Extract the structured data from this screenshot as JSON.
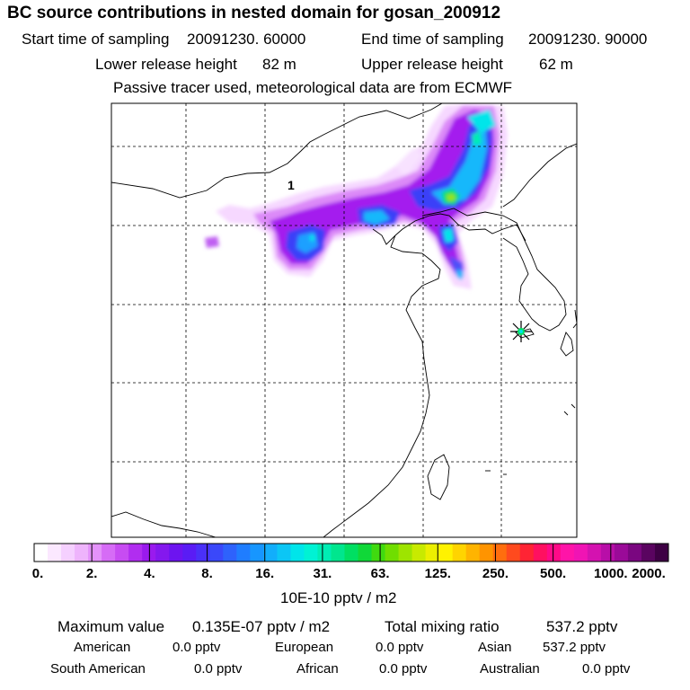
{
  "title": "BC  source contributions in nested domain for gosan_200912",
  "sampling": {
    "start_label": "Start time of sampling",
    "start_value": "20091230. 60000",
    "end_label": "End time of sampling",
    "end_value": "20091230. 90000"
  },
  "release": {
    "lower_label": "Lower release height",
    "lower_value": "82 m",
    "upper_label": "Upper release height",
    "upper_value": "62 m"
  },
  "note": "Passive tracer used, meteorological data are from ECMWF",
  "map": {
    "marker_label": "1",
    "receptor_name": "gosan"
  },
  "colorbar": {
    "unit": "10E-10 pptv / m2",
    "tick_labels": [
      "0.",
      "2.",
      "4.",
      "8.",
      "16.",
      "31.",
      "63.",
      "125.",
      "250.",
      "500.",
      "1000.",
      "2000."
    ],
    "colors": [
      "#ffffff",
      "#fbe8ff",
      "#f5d0ff",
      "#eeb4fc",
      "#e492fa",
      "#d66cf6",
      "#c74cf2",
      "#b12df0",
      "#9a1aee",
      "#8418ee",
      "#6d14f0",
      "#5a1cf5",
      "#4a30f8",
      "#3a48fa",
      "#2e62fc",
      "#1f7dff",
      "#1796ff",
      "#12aefb",
      "#0cc6f5",
      "#00e5ea",
      "#00f2d4",
      "#00edb4",
      "#00e68e",
      "#00df62",
      "#10d838",
      "#40da10",
      "#70de00",
      "#9ee400",
      "#c8ea00",
      "#ecef00",
      "#fff200",
      "#ffd400",
      "#ffb400",
      "#ff9400",
      "#ff6e0e",
      "#ff4a1e",
      "#ff2434",
      "#ff1060",
      "#ff0a88",
      "#ff14a8",
      "#f014b4",
      "#d412b0",
      "#b80ea8",
      "#9a0a98",
      "#7a0680",
      "#5a0460",
      "#3e0044"
    ]
  },
  "stats": {
    "max_label": "Maximum value",
    "max_value": "0.135E-07 pptv / m2",
    "total_label": "Total mixing ratio",
    "total_value": "537.2 pptv"
  },
  "regions": [
    {
      "name": "American",
      "value": "0.0 pptv"
    },
    {
      "name": "European",
      "value": "0.0 pptv"
    },
    {
      "name": "Asian",
      "value": "537.2 pptv"
    },
    {
      "name": "South American",
      "value": "0.0 pptv"
    },
    {
      "name": "African",
      "value": "0.0 pptv"
    },
    {
      "name": "Australian",
      "value": "0.0 pptv"
    }
  ]
}
